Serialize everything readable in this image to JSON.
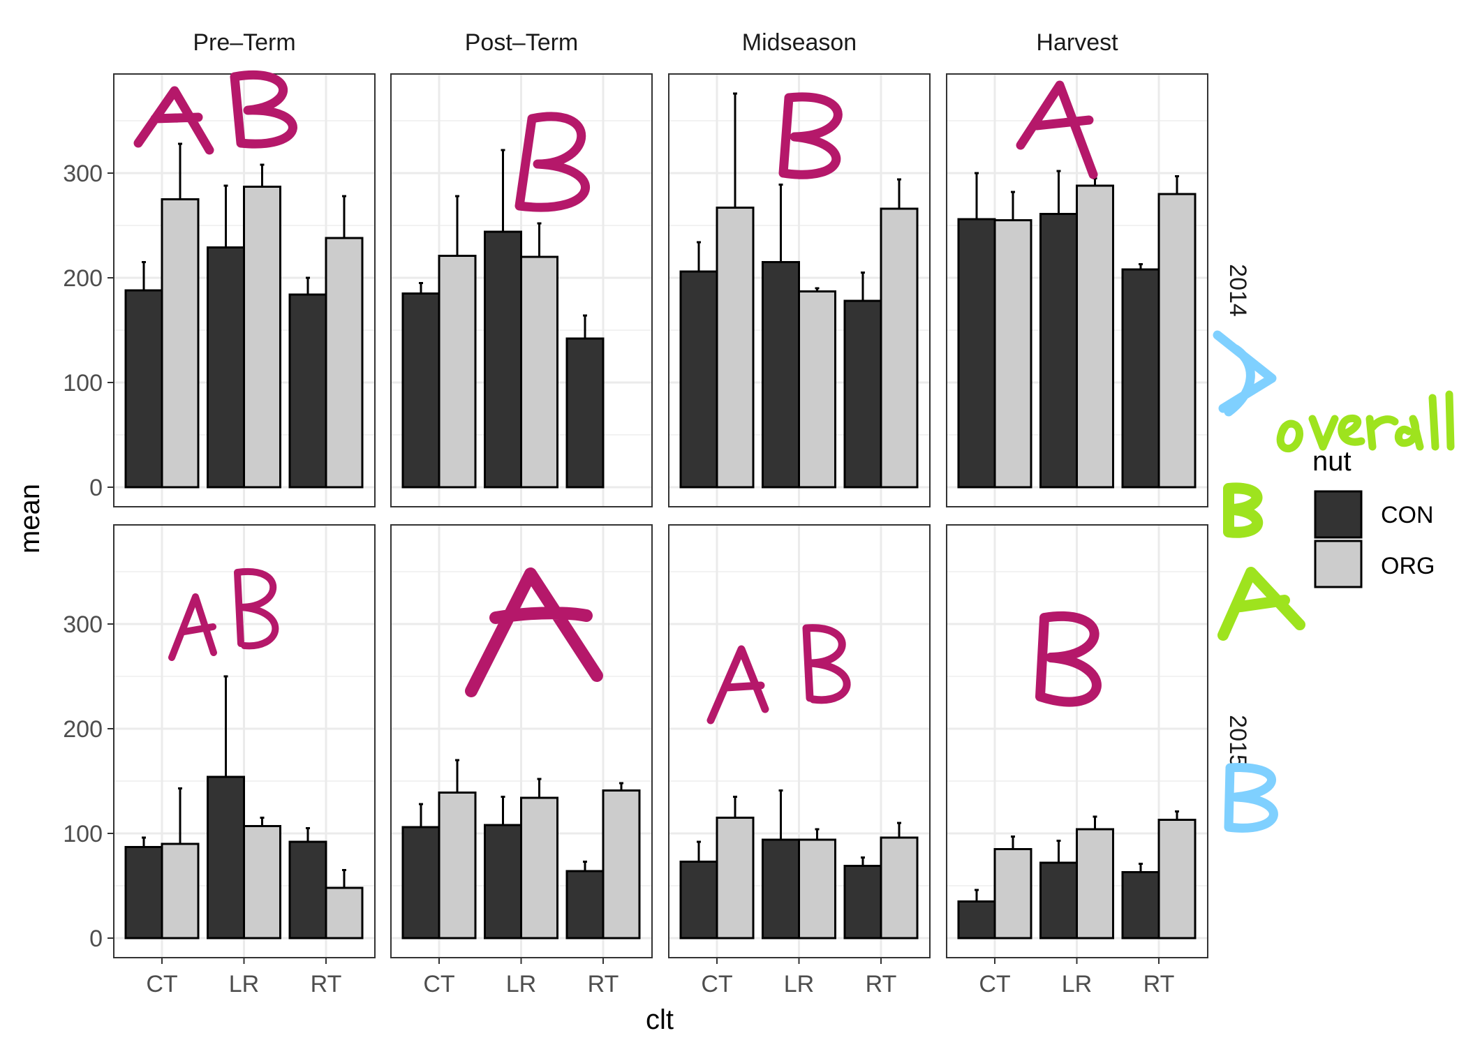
{
  "chart_data": {
    "type": "bar",
    "xlabel": "clt",
    "ylabel": "mean",
    "ylim": [
      0,
      380
    ],
    "yticks": [
      0,
      100,
      200,
      300
    ],
    "categories": [
      "CT",
      "LR",
      "RT"
    ],
    "facet_columns": [
      "Pre–Term",
      "Post–Term",
      "Midseason",
      "Harvest"
    ],
    "facet_rows": [
      "2014",
      "2015"
    ],
    "legend": {
      "title": "nut",
      "position": "right",
      "entries": [
        {
          "name": "CON",
          "color": "#333333"
        },
        {
          "name": "ORG",
          "color": "#cccccc"
        }
      ]
    },
    "grid": true,
    "panels": [
      {
        "year": "2014",
        "period": "Pre–Term",
        "CON": {
          "mean": [
            188,
            229,
            184
          ],
          "upper": [
            215,
            288,
            200
          ]
        },
        "ORG": {
          "mean": [
            275,
            287,
            238
          ],
          "upper": [
            328,
            308,
            278
          ]
        }
      },
      {
        "year": "2014",
        "period": "Post–Term",
        "CON": {
          "mean": [
            185,
            244,
            142
          ],
          "upper": [
            195,
            322,
            164
          ]
        },
        "ORG": {
          "mean": [
            221,
            220,
            null
          ],
          "upper": [
            278,
            252,
            null
          ]
        }
      },
      {
        "year": "2014",
        "period": "Midseason",
        "CON": {
          "mean": [
            206,
            215,
            178
          ],
          "upper": [
            234,
            289,
            205
          ]
        },
        "ORG": {
          "mean": [
            267,
            187,
            266
          ],
          "upper": [
            376,
            190,
            294
          ]
        }
      },
      {
        "year": "2014",
        "period": "Harvest",
        "CON": {
          "mean": [
            256,
            261,
            208
          ],
          "upper": [
            300,
            302,
            213
          ]
        },
        "ORG": {
          "mean": [
            255,
            288,
            280
          ],
          "upper": [
            282,
            295,
            297
          ]
        }
      },
      {
        "year": "2015",
        "period": "Pre–Term",
        "CON": {
          "mean": [
            87,
            154,
            92
          ],
          "upper": [
            96,
            250,
            105
          ]
        },
        "ORG": {
          "mean": [
            90,
            107,
            48
          ],
          "upper": [
            143,
            115,
            65
          ]
        }
      },
      {
        "year": "2015",
        "period": "Post–Term",
        "CON": {
          "mean": [
            106,
            108,
            64
          ],
          "upper": [
            128,
            135,
            73
          ]
        },
        "ORG": {
          "mean": [
            139,
            134,
            141
          ],
          "upper": [
            170,
            152,
            148
          ]
        }
      },
      {
        "year": "2015",
        "period": "Midseason",
        "CON": {
          "mean": [
            73,
            94,
            69
          ],
          "upper": [
            92,
            141,
            77
          ]
        },
        "ORG": {
          "mean": [
            115,
            94,
            96
          ],
          "upper": [
            135,
            104,
            110
          ]
        }
      },
      {
        "year": "2015",
        "period": "Harvest",
        "CON": {
          "mean": [
            35,
            72,
            63
          ],
          "upper": [
            46,
            93,
            71
          ]
        },
        "ORG": {
          "mean": [
            85,
            104,
            113
          ],
          "upper": [
            97,
            116,
            121
          ]
        }
      }
    ],
    "annotations": [
      {
        "text": "AB",
        "color": "#b5186a",
        "facet": "2014 Pre–Term"
      },
      {
        "text": "B",
        "color": "#b5186a",
        "facet": "2014 Post–Term"
      },
      {
        "text": "B",
        "color": "#b5186a",
        "facet": "2014 Midseason"
      },
      {
        "text": "A",
        "color": "#b5186a",
        "facet": "2014 Harvest"
      },
      {
        "text": "AB",
        "color": "#b5186a",
        "facet": "2015 Pre–Term"
      },
      {
        "text": "A",
        "color": "#b5186a",
        "facet": "2015 Post–Term"
      },
      {
        "text": "AB",
        "color": "#b5186a",
        "facet": "2015 Midseason"
      },
      {
        "text": "B",
        "color": "#b5186a",
        "facet": "2015 Harvest"
      },
      {
        "text": "A",
        "color": "#7fd0ff",
        "facet": "2014 year"
      },
      {
        "text": "B",
        "color": "#7fd0ff",
        "facet": "2015 year"
      },
      {
        "text": "overall",
        "color": "#9ee31e",
        "facet": "legend"
      },
      {
        "text": "B",
        "color": "#9ee31e",
        "facet": "legend CON"
      },
      {
        "text": "A",
        "color": "#9ee31e",
        "facet": "legend ORG"
      }
    ]
  }
}
